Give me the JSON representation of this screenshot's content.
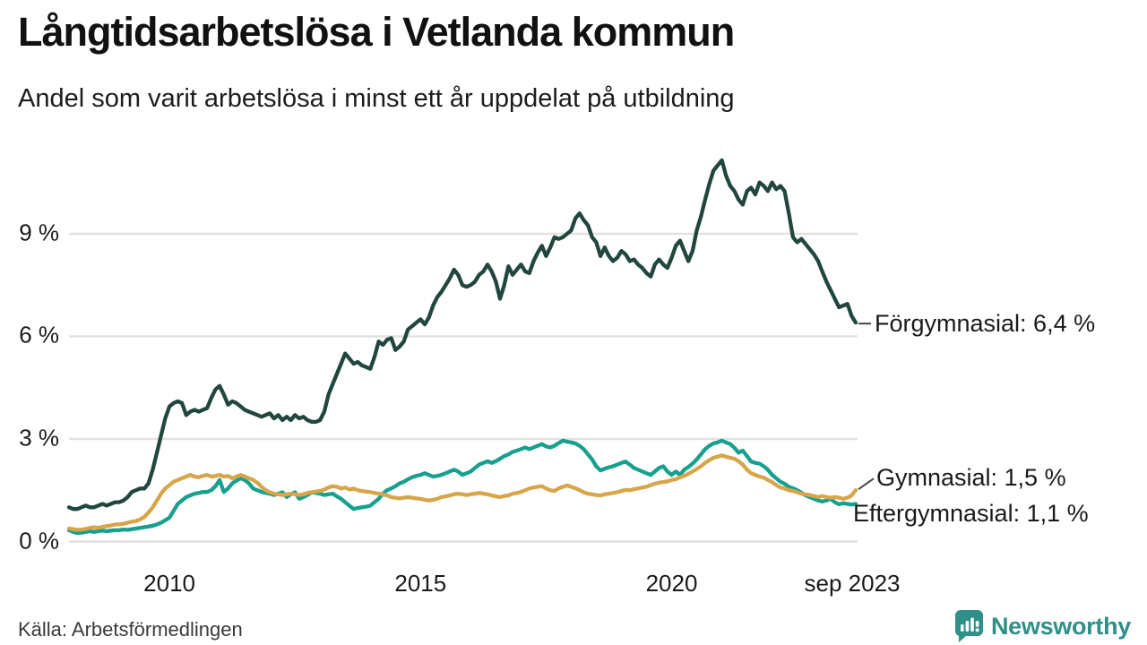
{
  "header": {
    "title": "Långtidsarbetslösa i Vetlanda kommun",
    "subtitle": "Andel som varit arbetslösa i minst ett år uppdelat på utbildning"
  },
  "footer": {
    "source": "Källa: Arbetsförmedlingen",
    "brand": "Newsworthy"
  },
  "colors": {
    "forgymnasial": "#21463e",
    "gymnasial": "#d7a54a",
    "eftergymnasial": "#17a08e",
    "gridline": "#e4e2df",
    "axis_text": "#1a1a1a",
    "connector": "#444444",
    "brand_teal": "#2f9088"
  },
  "chart_data": {
    "type": "line",
    "title": "Långtidsarbetslösa i Vetlanda kommun",
    "subtitle": "Andel som varit arbetslösa i minst ett år uppdelat på utbildning",
    "unit": "%",
    "freq": "monthly",
    "x_start": "2008-01",
    "x_end": "2023-09",
    "ylim": [
      0,
      11.6
    ],
    "grid": "horizontal",
    "y_ticks": [
      {
        "value": 0,
        "label": "0 %"
      },
      {
        "value": 3,
        "label": "3 %"
      },
      {
        "value": 6,
        "label": "6 %"
      },
      {
        "value": 9,
        "label": "9 %"
      }
    ],
    "x_ticks": [
      {
        "year": 2010.0,
        "label": "2010"
      },
      {
        "year": 2015.0,
        "label": "2015"
      },
      {
        "year": 2020.0,
        "label": "2020"
      },
      {
        "year": 2023.667,
        "label": "sep 2023"
      }
    ],
    "series": [
      {
        "name": "Förgymnasial",
        "color_key": "forgymnasial",
        "end_label": "Förgymnasial: 6,4 %",
        "end_value": 6.4,
        "values": [
          1.0,
          0.95,
          0.95,
          1.0,
          1.05,
          1.0,
          1.0,
          1.05,
          1.1,
          1.05,
          1.1,
          1.15,
          1.15,
          1.2,
          1.3,
          1.45,
          1.5,
          1.55,
          1.55,
          1.7,
          2.1,
          2.6,
          3.1,
          3.6,
          3.95,
          4.05,
          4.1,
          4.05,
          3.7,
          3.8,
          3.85,
          3.8,
          3.85,
          3.9,
          4.2,
          4.45,
          4.55,
          4.3,
          4.0,
          4.1,
          4.05,
          3.95,
          3.85,
          3.8,
          3.75,
          3.7,
          3.65,
          3.7,
          3.75,
          3.6,
          3.7,
          3.55,
          3.65,
          3.55,
          3.7,
          3.6,
          3.65,
          3.55,
          3.5,
          3.5,
          3.55,
          3.8,
          4.3,
          4.6,
          4.9,
          5.2,
          5.5,
          5.35,
          5.2,
          5.25,
          5.15,
          5.1,
          5.05,
          5.4,
          5.85,
          5.75,
          5.9,
          5.95,
          5.6,
          5.7,
          5.85,
          6.2,
          6.3,
          6.4,
          6.5,
          6.35,
          6.55,
          6.9,
          7.15,
          7.3,
          7.5,
          7.7,
          7.95,
          7.8,
          7.5,
          7.45,
          7.5,
          7.6,
          7.8,
          7.9,
          8.1,
          7.9,
          7.6,
          7.1,
          7.5,
          8.05,
          7.8,
          7.95,
          8.1,
          7.9,
          7.85,
          8.2,
          8.45,
          8.65,
          8.35,
          8.6,
          8.9,
          8.85,
          8.9,
          9.0,
          9.1,
          9.45,
          9.6,
          9.4,
          9.25,
          8.9,
          8.75,
          8.35,
          8.6,
          8.35,
          8.2,
          8.3,
          8.5,
          8.4,
          8.2,
          8.25,
          8.1,
          8.0,
          7.85,
          7.75,
          8.1,
          8.25,
          8.1,
          8.0,
          8.3,
          8.65,
          8.8,
          8.5,
          8.2,
          8.5,
          9.1,
          9.5,
          10.0,
          10.45,
          10.85,
          11.0,
          11.15,
          10.7,
          10.4,
          10.25,
          10.0,
          9.85,
          10.25,
          10.35,
          10.15,
          10.5,
          10.4,
          10.25,
          10.5,
          10.3,
          10.4,
          10.25,
          9.6,
          8.9,
          8.75,
          8.85,
          8.7,
          8.55,
          8.4,
          8.2,
          7.9,
          7.6,
          7.35,
          7.1,
          6.85,
          6.9,
          6.95,
          6.6,
          6.4
        ]
      },
      {
        "name": "Gymnasial",
        "color_key": "gymnasial",
        "end_label": "Gymnasial: 1,5 %",
        "end_value": 1.5,
        "values": [
          0.38,
          0.36,
          0.34,
          0.35,
          0.37,
          0.4,
          0.42,
          0.4,
          0.43,
          0.45,
          0.47,
          0.5,
          0.5,
          0.52,
          0.55,
          0.58,
          0.6,
          0.65,
          0.72,
          0.85,
          1.0,
          1.2,
          1.4,
          1.55,
          1.65,
          1.75,
          1.8,
          1.85,
          1.9,
          1.95,
          1.9,
          1.88,
          1.92,
          1.95,
          1.9,
          1.92,
          1.95,
          1.9,
          1.92,
          1.85,
          1.9,
          1.95,
          1.9,
          1.85,
          1.8,
          1.72,
          1.6,
          1.5,
          1.44,
          1.4,
          1.38,
          1.36,
          1.38,
          1.4,
          1.38,
          1.36,
          1.38,
          1.42,
          1.44,
          1.46,
          1.48,
          1.52,
          1.58,
          1.62,
          1.6,
          1.55,
          1.58,
          1.52,
          1.55,
          1.5,
          1.48,
          1.46,
          1.45,
          1.42,
          1.4,
          1.38,
          1.35,
          1.3,
          1.28,
          1.26,
          1.28,
          1.3,
          1.28,
          1.26,
          1.25,
          1.22,
          1.2,
          1.22,
          1.25,
          1.3,
          1.32,
          1.35,
          1.38,
          1.4,
          1.38,
          1.36,
          1.38,
          1.4,
          1.42,
          1.4,
          1.38,
          1.35,
          1.32,
          1.3,
          1.33,
          1.35,
          1.4,
          1.42,
          1.45,
          1.5,
          1.55,
          1.58,
          1.6,
          1.62,
          1.55,
          1.5,
          1.48,
          1.55,
          1.6,
          1.64,
          1.6,
          1.56,
          1.5,
          1.44,
          1.4,
          1.38,
          1.36,
          1.35,
          1.38,
          1.4,
          1.42,
          1.44,
          1.48,
          1.51,
          1.5,
          1.53,
          1.55,
          1.58,
          1.6,
          1.65,
          1.69,
          1.72,
          1.74,
          1.76,
          1.8,
          1.82,
          1.88,
          1.92,
          1.98,
          2.05,
          2.12,
          2.2,
          2.3,
          2.38,
          2.45,
          2.48,
          2.52,
          2.48,
          2.45,
          2.42,
          2.35,
          2.25,
          2.1,
          2.0,
          1.95,
          1.9,
          1.87,
          1.8,
          1.74,
          1.65,
          1.58,
          1.55,
          1.5,
          1.48,
          1.44,
          1.4,
          1.38,
          1.36,
          1.33,
          1.3,
          1.33,
          1.3,
          1.28,
          1.3,
          1.28,
          1.25,
          1.28,
          1.35,
          1.5
        ]
      },
      {
        "name": "Eftergymnasial",
        "color_key": "eftergymnasial",
        "end_label": "Eftergymnasial: 1,1 %",
        "end_value": 1.1,
        "values": [
          0.33,
          0.28,
          0.25,
          0.26,
          0.28,
          0.3,
          0.28,
          0.3,
          0.32,
          0.3,
          0.32,
          0.33,
          0.33,
          0.35,
          0.34,
          0.36,
          0.38,
          0.4,
          0.42,
          0.44,
          0.46,
          0.5,
          0.55,
          0.62,
          0.7,
          0.9,
          1.1,
          1.2,
          1.3,
          1.35,
          1.4,
          1.42,
          1.45,
          1.45,
          1.5,
          1.62,
          1.8,
          1.45,
          1.55,
          1.7,
          1.78,
          1.85,
          1.8,
          1.7,
          1.55,
          1.5,
          1.45,
          1.42,
          1.4,
          1.36,
          1.4,
          1.44,
          1.3,
          1.38,
          1.44,
          1.25,
          1.3,
          1.36,
          1.44,
          1.42,
          1.4,
          1.36,
          1.38,
          1.4,
          1.32,
          1.25,
          1.15,
          1.05,
          0.95,
          0.98,
          1.0,
          1.02,
          1.05,
          1.15,
          1.25,
          1.4,
          1.5,
          1.55,
          1.62,
          1.7,
          1.75,
          1.82,
          1.88,
          1.92,
          1.95,
          2.0,
          1.95,
          1.9,
          1.92,
          1.95,
          2.0,
          2.05,
          2.1,
          2.05,
          1.95,
          2.0,
          2.05,
          2.15,
          2.25,
          2.3,
          2.35,
          2.3,
          2.35,
          2.42,
          2.5,
          2.55,
          2.62,
          2.66,
          2.7,
          2.75,
          2.7,
          2.75,
          2.8,
          2.85,
          2.78,
          2.75,
          2.8,
          2.88,
          2.95,
          2.92,
          2.9,
          2.87,
          2.8,
          2.7,
          2.55,
          2.4,
          2.2,
          2.08,
          2.13,
          2.17,
          2.2,
          2.25,
          2.3,
          2.34,
          2.25,
          2.15,
          2.1,
          2.05,
          2.0,
          1.95,
          2.05,
          2.15,
          2.2,
          2.05,
          1.95,
          2.05,
          1.95,
          2.1,
          2.18,
          2.28,
          2.4,
          2.55,
          2.7,
          2.8,
          2.87,
          2.9,
          2.95,
          2.9,
          2.85,
          2.74,
          2.6,
          2.66,
          2.5,
          2.34,
          2.3,
          2.28,
          2.2,
          2.1,
          1.95,
          1.85,
          1.75,
          1.69,
          1.6,
          1.56,
          1.5,
          1.43,
          1.35,
          1.3,
          1.25,
          1.2,
          1.17,
          1.2,
          1.25,
          1.15,
          1.09,
          1.12,
          1.1,
          1.08,
          1.1
        ]
      }
    ]
  }
}
